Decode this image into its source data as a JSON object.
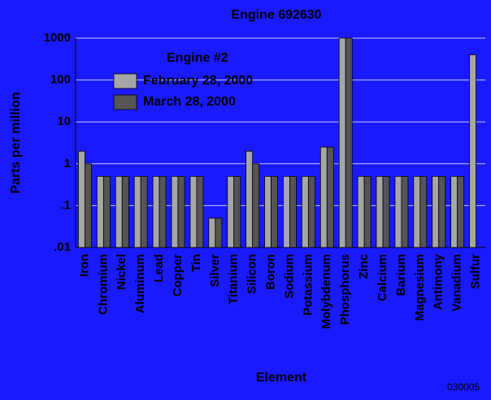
{
  "chart_data": {
    "type": "bar",
    "title": "Engine 692630",
    "x_label": "Element",
    "y_label": "Parts per million",
    "annotation": "030005",
    "legend_title": "Engine #2",
    "legend_position": "upper left",
    "log_y": true,
    "grid": true,
    "categories": [
      "Iron",
      "Chromium",
      "Nickel",
      "Aluminum",
      "Lead",
      "Copper",
      "Tin",
      "Silver",
      "Titanium",
      "Silicon",
      "Boron",
      "Sodium",
      "Potassium",
      "Molybdenum",
      "Phosphorus",
      "Zinc",
      "Calcium",
      "Barium",
      "Magnesium",
      "Antimony",
      "Vanadium",
      "Sulfur"
    ],
    "series": [
      {
        "name": "February 28, 2000",
        "color": "#a6a6a6",
        "values": [
          2,
          0.5,
          0.5,
          0.5,
          0.5,
          0.5,
          0.5,
          0.05,
          0.5,
          2,
          0.5,
          0.5,
          0.5,
          2.5,
          1000,
          0.5,
          0.5,
          0.5,
          0.5,
          0.5,
          0.5,
          400
        ]
      },
      {
        "name": "March 28, 2000",
        "color": "#555555",
        "values": [
          1,
          0.5,
          0.5,
          0.5,
          0.5,
          0.5,
          0.5,
          0.05,
          0.5,
          1,
          0.5,
          0.5,
          0.5,
          2.5,
          1000,
          0.5,
          0.5,
          0.5,
          0.5,
          0.5,
          0.5,
          null
        ]
      }
    ],
    "ylim": [
      0.01,
      1000
    ],
    "yticks": [
      {
        "value": 0.01,
        "label": ".01"
      },
      {
        "value": 0.1,
        "label": ".1"
      },
      1,
      10,
      100,
      1000
    ]
  }
}
